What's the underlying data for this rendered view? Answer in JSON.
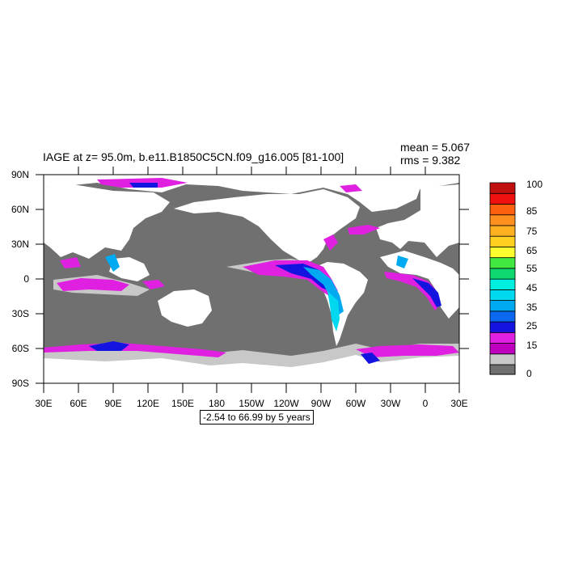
{
  "title": "IAGE at z=  95.0m, b.e11.B1850C5CN.f09_g16.005 [81-100]",
  "stats": {
    "mean": "mean = 5.067",
    "rms": "rms = 9.382"
  },
  "yticks": [
    "90N",
    "60N",
    "30N",
    "0",
    "30S",
    "60S",
    "90S"
  ],
  "xticks": [
    "30E",
    "60E",
    "90E",
    "120E",
    "150E",
    "180",
    "150W",
    "120W",
    "90W",
    "60W",
    "30W",
    "0",
    "30E"
  ],
  "contour_info": "-2.54 to 66.99 by 5 years",
  "colorbar": {
    "labels": [
      "100",
      "85",
      "75",
      "65",
      "55",
      "45",
      "35",
      "25",
      "15",
      "0"
    ],
    "colors": [
      "#c8c8c8",
      "#bf00bf",
      "#e020e0",
      "#1414e0",
      "#0a68f0",
      "#00aaf0",
      "#00d8f0",
      "#00f0e0",
      "#10d870",
      "#40e840",
      "#ffff30",
      "#ffd020",
      "#ffb020",
      "#ff9020",
      "#ff6010",
      "#f01010",
      "#c01010"
    ]
  },
  "colors": {
    "land": "#ffffff",
    "missing": "#707070",
    "low_age": "#c8c8c8",
    "accent_magenta": "#e020e0",
    "accent_blue": "#1414e0",
    "accent_cyan": "#00aaf0"
  }
}
